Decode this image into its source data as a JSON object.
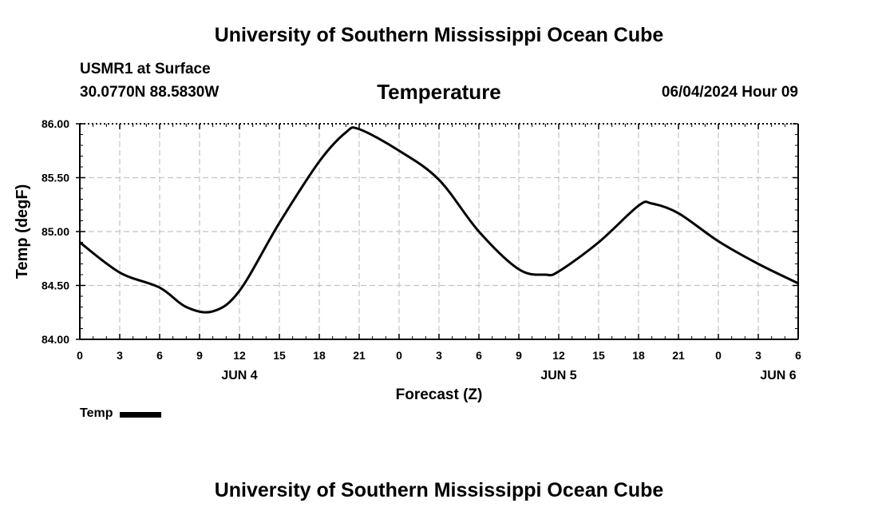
{
  "header": {
    "title": "University of Southern Mississippi Ocean Cube",
    "station": "USMR1 at Surface",
    "coordinates": "30.0770N  88.5830W",
    "chart_title": "Temperature",
    "datetime": "06/04/2024 Hour 09"
  },
  "footer": {
    "title": "University of Southern Mississippi Ocean Cube"
  },
  "legend": {
    "label": "Temp",
    "color": "#000000"
  },
  "chart_data": {
    "type": "line",
    "title": "Temperature",
    "xlabel": "Forecast (Z)",
    "ylabel": "Temp (degF)",
    "x_unit": "forecast hours from 06/04/2024 00Z",
    "xlim": [
      0,
      54
    ],
    "ylim": [
      84.0,
      86.0
    ],
    "x_ticks": [
      0,
      3,
      6,
      9,
      12,
      15,
      18,
      21,
      24,
      27,
      30,
      33,
      36,
      39,
      42,
      45,
      48,
      51,
      54
    ],
    "x_tick_labels": [
      "0",
      "3",
      "6",
      "9",
      "12",
      "15",
      "18",
      "21",
      "0",
      "3",
      "6",
      "9",
      "12",
      "15",
      "18",
      "21",
      "0",
      "3",
      "6"
    ],
    "y_ticks": [
      84.0,
      84.5,
      85.0,
      85.5,
      86.0
    ],
    "y_tick_labels": [
      "84.00",
      "84.50",
      "85.00",
      "85.50",
      "86.00"
    ],
    "day_labels": [
      {
        "x": 12,
        "text": "JUN 4"
      },
      {
        "x": 36,
        "text": "JUN 5"
      },
      {
        "x": 52.5,
        "text": "JUN 6"
      }
    ],
    "grid": true,
    "legend_position": "bottom-left",
    "series": [
      {
        "name": "Temp",
        "color": "#000000",
        "x": [
          0,
          3,
          6,
          8,
          10,
          12,
          15,
          18,
          20,
          21,
          24,
          27,
          30,
          33,
          35,
          36,
          39,
          42,
          43,
          45,
          48,
          51,
          54
        ],
        "y": [
          84.9,
          84.62,
          84.48,
          84.3,
          84.26,
          84.45,
          85.08,
          85.65,
          85.92,
          85.95,
          85.75,
          85.48,
          85.0,
          84.65,
          84.6,
          84.63,
          84.9,
          85.24,
          85.26,
          85.17,
          84.91,
          84.7,
          84.52
        ]
      }
    ]
  }
}
